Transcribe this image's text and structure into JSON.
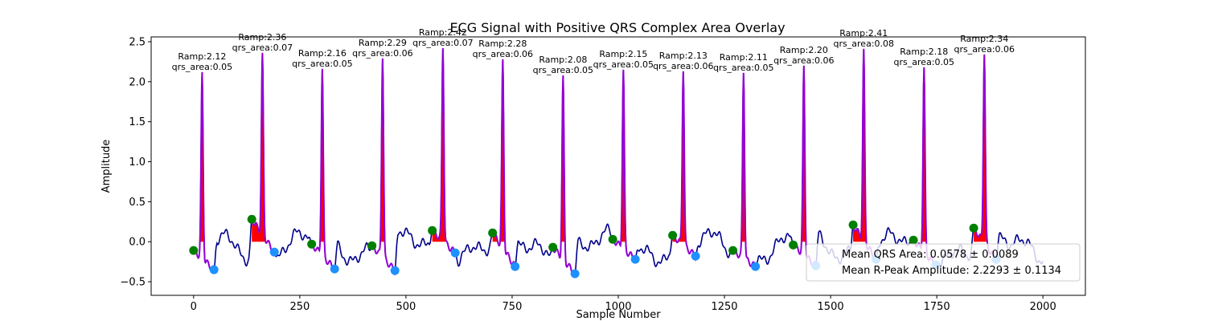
{
  "chart_data": {
    "type": "line",
    "title": "ECG Signal with Positive QRS Complex Area Overlay",
    "xlabel": "Sample Number",
    "ylabel": "Amplitude",
    "xlim": [
      -100,
      2100
    ],
    "ylim": [
      -0.67,
      2.56
    ],
    "xticks": [
      0,
      250,
      500,
      750,
      1000,
      1250,
      1500,
      1750,
      2000
    ],
    "yticks": [
      -0.5,
      0.0,
      0.5,
      1.0,
      1.5,
      2.0,
      2.5
    ],
    "ytick_labels": [
      "−0.5",
      "0.0",
      "0.5",
      "1.0",
      "1.5",
      "2.0",
      "2.5"
    ],
    "grid": false,
    "legend_position": "lower-right",
    "colors": {
      "signal": "#00008b",
      "qrs_segment": "#9400d3",
      "qrs_area_fill": "#ff0000",
      "q_marker": "#008000",
      "s_marker": "#1e90ff"
    },
    "beats": [
      {
        "r_sample": 20,
        "r_amp": 2.12,
        "qrs_area": 0.05,
        "q_sample": 0,
        "q_amp": -0.11,
        "s_sample": 48,
        "s_amp": -0.35
      },
      {
        "r_sample": 162,
        "r_amp": 2.36,
        "qrs_area": 0.07,
        "q_sample": 137,
        "q_amp": 0.28,
        "s_sample": 190,
        "s_amp": -0.13
      },
      {
        "r_sample": 303,
        "r_amp": 2.16,
        "qrs_area": 0.05,
        "q_sample": 278,
        "q_amp": -0.03,
        "s_sample": 332,
        "s_amp": -0.34
      },
      {
        "r_sample": 445,
        "r_amp": 2.29,
        "qrs_area": 0.06,
        "q_sample": 420,
        "q_amp": -0.05,
        "s_sample": 474,
        "s_amp": -0.36
      },
      {
        "r_sample": 587,
        "r_amp": 2.42,
        "qrs_area": 0.07,
        "q_sample": 562,
        "q_amp": 0.14,
        "s_sample": 616,
        "s_amp": -0.14
      },
      {
        "r_sample": 728,
        "r_amp": 2.28,
        "qrs_area": 0.06,
        "q_sample": 704,
        "q_amp": 0.11,
        "s_sample": 757,
        "s_amp": -0.31
      },
      {
        "r_sample": 870,
        "r_amp": 2.08,
        "qrs_area": 0.05,
        "q_sample": 846,
        "q_amp": -0.07,
        "s_sample": 898,
        "s_amp": -0.4
      },
      {
        "r_sample": 1012,
        "r_amp": 2.15,
        "qrs_area": 0.05,
        "q_sample": 987,
        "q_amp": 0.03,
        "s_sample": 1040,
        "s_amp": -0.22
      },
      {
        "r_sample": 1153,
        "r_amp": 2.13,
        "qrs_area": 0.06,
        "q_sample": 1128,
        "q_amp": 0.08,
        "s_sample": 1182,
        "s_amp": -0.18
      },
      {
        "r_sample": 1295,
        "r_amp": 2.11,
        "qrs_area": 0.05,
        "q_sample": 1270,
        "q_amp": -0.11,
        "s_sample": 1323,
        "s_amp": -0.31
      },
      {
        "r_sample": 1437,
        "r_amp": 2.2,
        "qrs_area": 0.06,
        "q_sample": 1412,
        "q_amp": -0.04,
        "s_sample": 1465,
        "s_amp": -0.3
      },
      {
        "r_sample": 1578,
        "r_amp": 2.41,
        "qrs_area": 0.08,
        "q_sample": 1553,
        "q_amp": 0.21,
        "s_sample": 1607,
        "s_amp": -0.22
      },
      {
        "r_sample": 1720,
        "r_amp": 2.18,
        "qrs_area": 0.05,
        "q_sample": 1695,
        "q_amp": 0.02,
        "s_sample": 1748,
        "s_amp": -0.29
      },
      {
        "r_sample": 1862,
        "r_amp": 2.34,
        "qrs_area": 0.06,
        "q_sample": 1837,
        "q_amp": 0.17,
        "s_sample": 1890,
        "s_amp": -0.22
      }
    ],
    "signal_samples": [
      0,
      2000
    ],
    "annotations": [
      {
        "line1": "Ramp:2.12",
        "line2": "qrs_area:0.05"
      },
      {
        "line1": "Ramp:2.36",
        "line2": "qrs_area:0.07"
      },
      {
        "line1": "Ramp:2.16",
        "line2": "qrs_area:0.05"
      },
      {
        "line1": "Ramp:2.29",
        "line2": "qrs_area:0.06"
      },
      {
        "line1": "Ramp:2.42",
        "line2": "qrs_area:0.07"
      },
      {
        "line1": "Ramp:2.28",
        "line2": "qrs_area:0.06"
      },
      {
        "line1": "Ramp:2.08",
        "line2": "qrs_area:0.05"
      },
      {
        "line1": "Ramp:2.15",
        "line2": "qrs_area:0.05"
      },
      {
        "line1": "Ramp:2.13",
        "line2": "qrs_area:0.06"
      },
      {
        "line1": "Ramp:2.11",
        "line2": "qrs_area:0.05"
      },
      {
        "line1": "Ramp:2.20",
        "line2": "qrs_area:0.06"
      },
      {
        "line1": "Ramp:2.41",
        "line2": "qrs_area:0.08"
      },
      {
        "line1": "Ramp:2.18",
        "line2": "qrs_area:0.05"
      },
      {
        "line1": "Ramp:2.34",
        "line2": "qrs_area:0.06"
      }
    ],
    "legend": [
      "Mean QRS Area: 0.0578 ± 0.0089",
      "Mean R-Peak Amplitude: 2.2293 ± 0.1134"
    ]
  }
}
